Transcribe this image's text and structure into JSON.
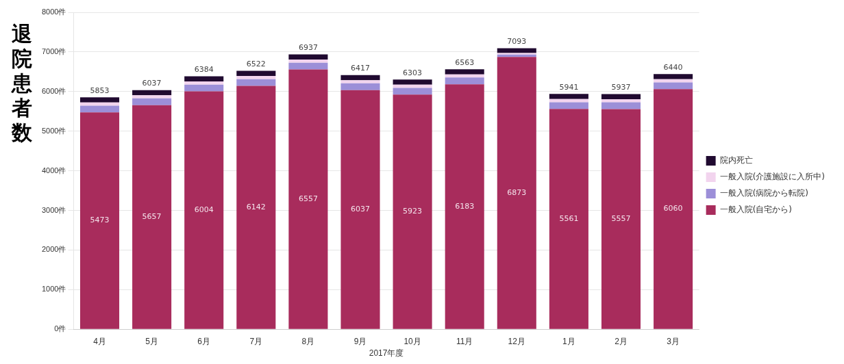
{
  "chart_data": {
    "type": "bar",
    "stacked": true,
    "ylabel": "退院患者数",
    "xlabel": "2017年度",
    "categories": [
      "4月",
      "5月",
      "6月",
      "7月",
      "8月",
      "9月",
      "10月",
      "11月",
      "12月",
      "1月",
      "2月",
      "3月"
    ],
    "series": [
      {
        "name": "一般入院(自宅から)",
        "color": "#a82c5c",
        "values": [
          5473,
          5657,
          6004,
          6142,
          6557,
          6037,
          5923,
          6183,
          6873,
          5561,
          5557,
          6060
        ],
        "value_labels": [
          "5473",
          "5657",
          "6004",
          "6142",
          "6557",
          "6037",
          "5923",
          "6183",
          "6873",
          "5561",
          "5557",
          "6060"
        ]
      },
      {
        "name": "一般入院(病院から転院)",
        "color": "#9c8fd8",
        "values": [
          170,
          170,
          170,
          170,
          170,
          170,
          170,
          170,
          60,
          170,
          170,
          170
        ]
      },
      {
        "name": "一般入院(介護施設に入所中)",
        "color": "#f2d4ee",
        "values": [
          80,
          80,
          80,
          80,
          80,
          80,
          80,
          80,
          40,
          80,
          80,
          80
        ]
      },
      {
        "name": "院内死亡",
        "color": "#200a30",
        "values": [
          130,
          130,
          130,
          130,
          130,
          130,
          130,
          130,
          120,
          130,
          130,
          130
        ]
      }
    ],
    "totals": [
      "5853",
      "6037",
      "6384",
      "6522",
      "6937",
      "6417",
      "6303",
      "6563",
      "7093",
      "5941",
      "5937",
      "6440"
    ],
    "ylim": [
      0,
      8000
    ],
    "yticks": [
      {
        "value": 0,
        "label": "0件"
      },
      {
        "value": 1000,
        "label": "1000件"
      },
      {
        "value": 2000,
        "label": "2000件"
      },
      {
        "value": 3000,
        "label": "3000件"
      },
      {
        "value": 4000,
        "label": "4000件"
      },
      {
        "value": 5000,
        "label": "5000件"
      },
      {
        "value": 6000,
        "label": "6000件"
      },
      {
        "value": 7000,
        "label": "7000件"
      },
      {
        "value": 8000,
        "label": "8000件"
      }
    ],
    "grid": "y",
    "legend": "right"
  }
}
